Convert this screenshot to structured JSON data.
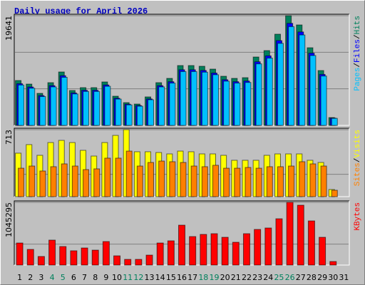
{
  "title": "Daily usage for April 2026",
  "chart_data": [
    {
      "type": "bar",
      "separator": "/",
      "ylim": [
        0,
        19641
      ],
      "yticks": [
        19641
      ],
      "series": [
        {
          "name": "Hits",
          "color": "#00805c",
          "values": [
            8034,
            7396,
            5739,
            7652,
            9566,
            6250,
            6760,
            6760,
            7780,
            5229,
            4081,
            3826,
            5102,
            7652,
            8418,
            10714,
            10714,
            10586,
            10076,
            8800,
            8418,
            8545,
            12244,
            13392,
            16326,
            19641,
            17984,
            13902,
            9821,
            1403,
            0
          ]
        },
        {
          "name": "Files",
          "color": "#0000ff",
          "values": [
            7470,
            6880,
            5340,
            7120,
            8900,
            5810,
            6290,
            6290,
            7240,
            4860,
            3800,
            3560,
            4740,
            7120,
            7830,
            9960,
            9960,
            9840,
            9370,
            8180,
            7830,
            7950,
            11390,
            12450,
            15180,
            18270,
            16730,
            12930,
            9130,
            1300,
            0
          ]
        },
        {
          "name": "Pages",
          "color": "#00c0ff",
          "values": [
            7230,
            6660,
            5170,
            6890,
            8610,
            5630,
            6080,
            6080,
            7000,
            4710,
            3670,
            3440,
            4590,
            6890,
            7580,
            9640,
            9640,
            9530,
            9070,
            7920,
            7580,
            7690,
            11020,
            12050,
            14690,
            17680,
            16190,
            12510,
            8840,
            1260,
            0
          ]
        }
      ]
    },
    {
      "type": "bar",
      "separator": "/",
      "ylim": [
        0,
        713
      ],
      "yticks": [
        713
      ],
      "series": [
        {
          "name": "Visits",
          "color": "#ffff00",
          "values": [
            463,
            554,
            440,
            576,
            599,
            576,
            493,
            432,
            576,
            652,
            713,
            478,
            478,
            470,
            455,
            485,
            478,
            455,
            455,
            440,
            387,
            387,
            387,
            440,
            455,
            455,
            455,
            387,
            364,
            76,
            0
          ]
        },
        {
          "name": "Sites",
          "color": "#ff8000",
          "values": [
            303,
            326,
            273,
            319,
            349,
            326,
            288,
            296,
            410,
            410,
            485,
            326,
            364,
            379,
            372,
            364,
            326,
            319,
            334,
            303,
            303,
            311,
            303,
            319,
            319,
            326,
            372,
            349,
            326,
            68,
            0
          ]
        }
      ]
    },
    {
      "type": "bar",
      "ylim": [
        0,
        1045295
      ],
      "yticks": [
        1045295
      ],
      "categories": [
        "1",
        "2",
        "3",
        "4",
        "5",
        "6",
        "7",
        "8",
        "9",
        "10",
        "11",
        "12",
        "13",
        "14",
        "15",
        "16",
        "17",
        "18",
        "19",
        "20",
        "21",
        "22",
        "23",
        "24",
        "25",
        "26",
        "27",
        "28",
        "29",
        "30",
        "31"
      ],
      "category_colors": [
        "#000000",
        "#000000",
        "#000000",
        "#00805c",
        "#00805c",
        "#000000",
        "#000000",
        "#000000",
        "#000000",
        "#000000",
        "#00805c",
        "#00805c",
        "#000000",
        "#000000",
        "#000000",
        "#000000",
        "#000000",
        "#00805c",
        "#00805c",
        "#000000",
        "#000000",
        "#000000",
        "#000000",
        "#000000",
        "#00805c",
        "#00805c",
        "#000000",
        "#000000",
        "#000000",
        "#000000",
        "#000000"
      ],
      "series": [
        {
          "name": "KBytes",
          "color": "#ff0000",
          "values": [
            368000,
            261000,
            143000,
            416000,
            309000,
            238000,
            285000,
            249000,
            392000,
            154000,
            95000,
            95000,
            166000,
            368000,
            404000,
            665000,
            475000,
            511000,
            523000,
            463000,
            380000,
            523000,
            594000,
            618000,
            772000,
            1045295,
            998000,
            736000,
            463000,
            59000,
            0
          ]
        }
      ]
    }
  ]
}
